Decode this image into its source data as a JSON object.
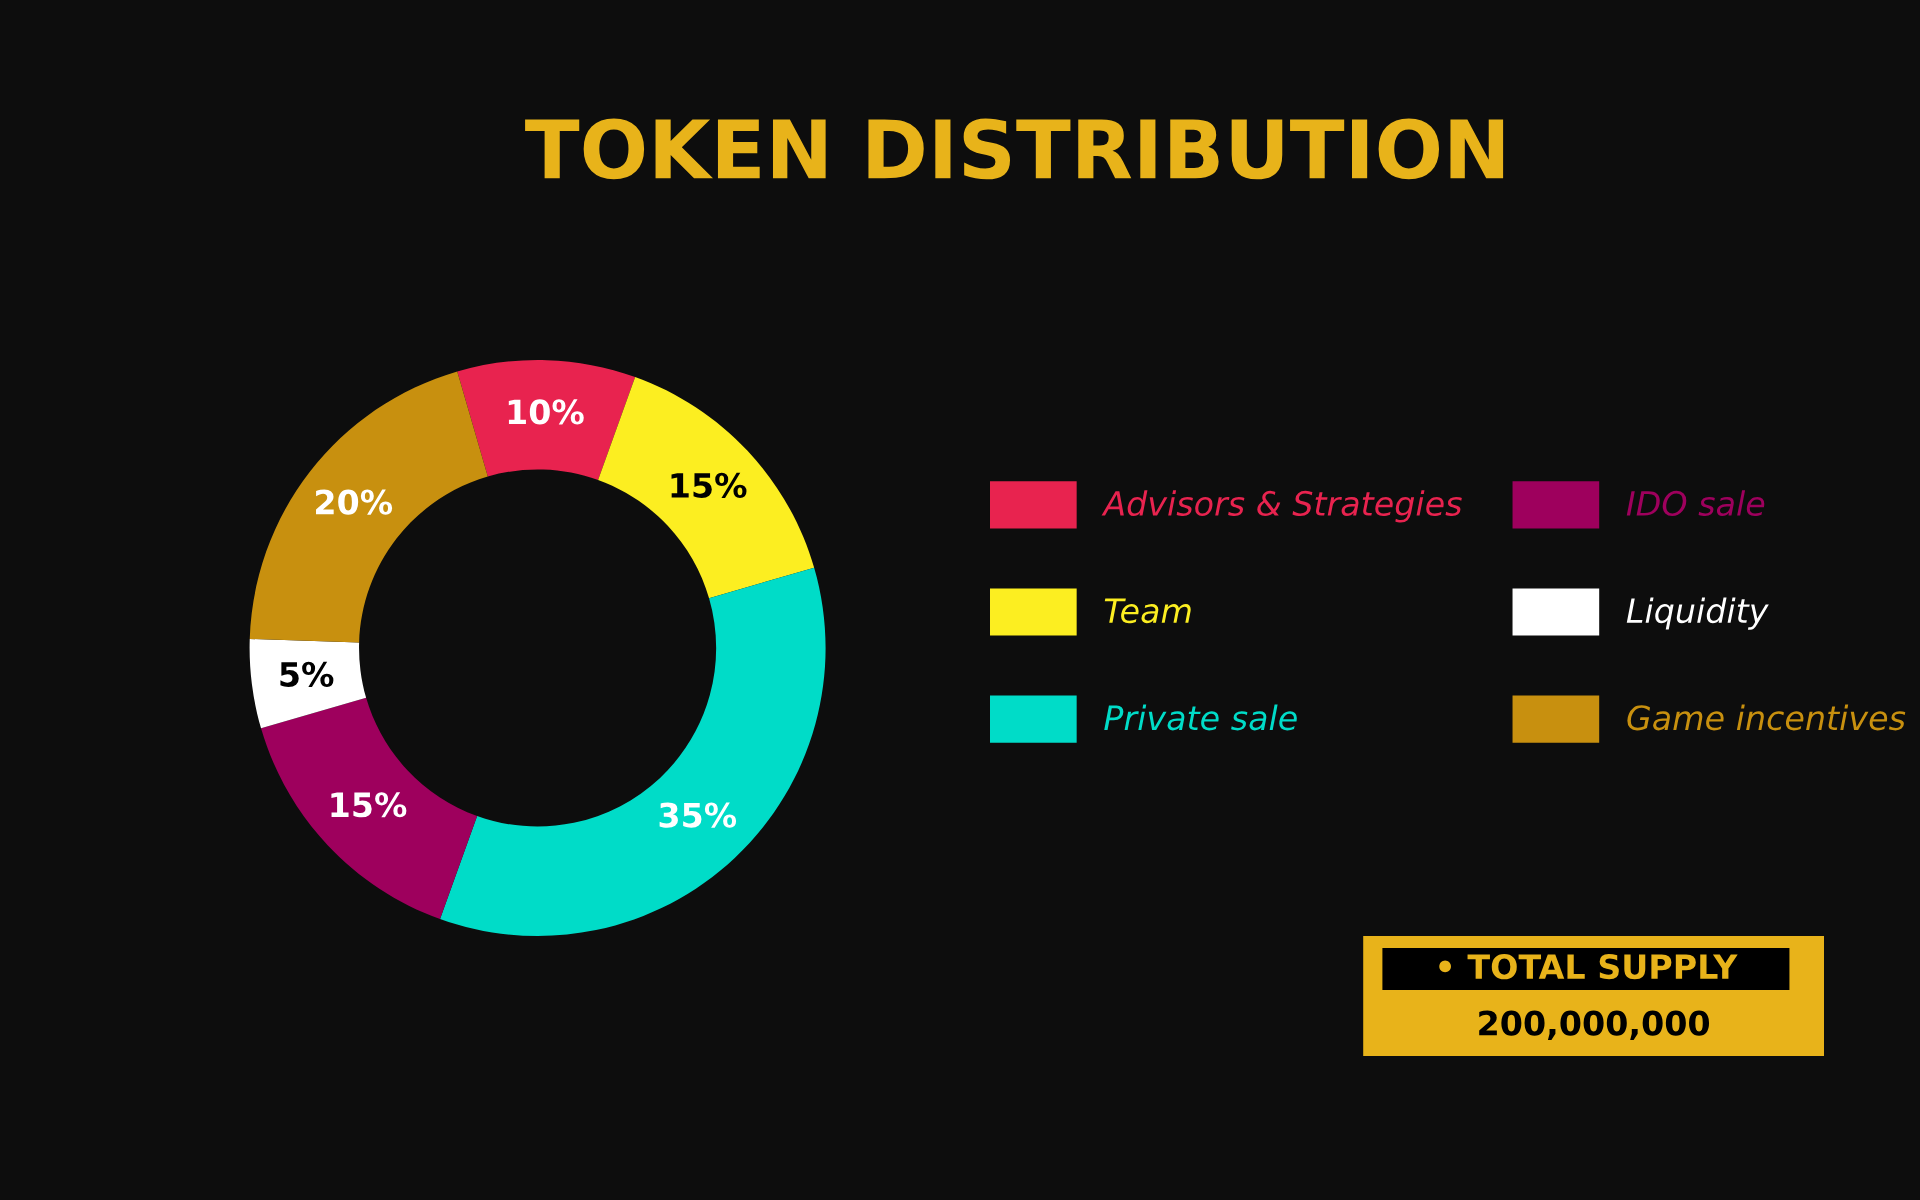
{
  "chart_data": {
    "type": "donut",
    "title": "TOKEN DISTRIBUTION",
    "categories": [
      "Advisors & Strategies",
      "Team",
      "Private sale",
      "IDO sale",
      "Liquidity",
      "Game incentives"
    ],
    "values": [
      10,
      15,
      35,
      15,
      5,
      20
    ],
    "colors": [
      "#e8234f",
      "#fcee21",
      "#00dcc8",
      "#9e005d",
      "#ffffff",
      "#c8900f"
    ],
    "value_labels": [
      "10%",
      "15%",
      "35%",
      "15%",
      "5%",
      "20%"
    ],
    "legend": "right",
    "annotations": [
      "• TOTAL SUPPLY",
      "200,000,000"
    ]
  }
}
